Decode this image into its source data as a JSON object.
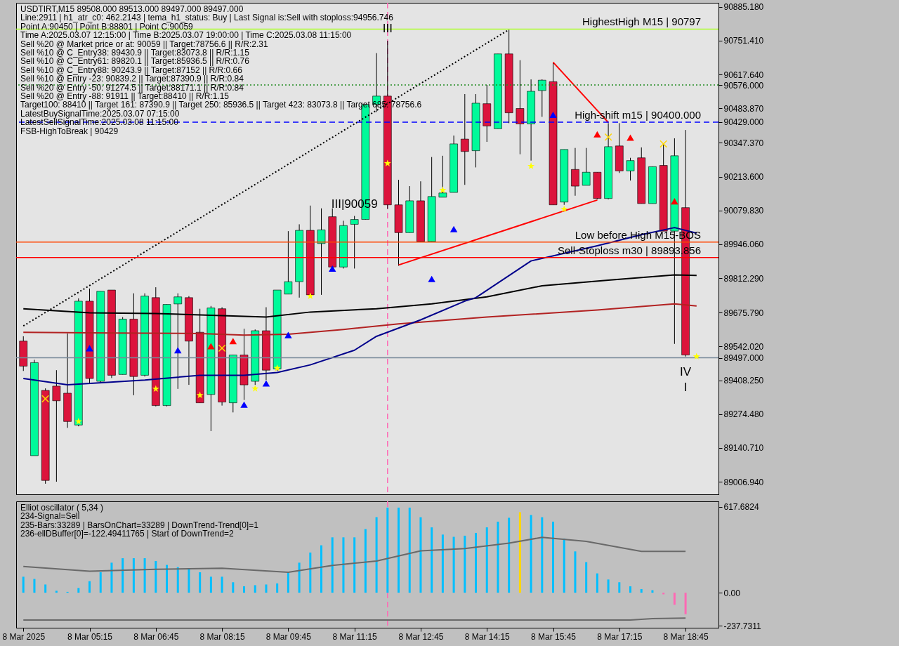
{
  "chart_data": [
    {
      "type": "candlestick",
      "x": [
        "2025-03-08T03:45",
        "2025-03-08T04:00",
        "2025-03-08T04:15",
        "2025-03-08T04:30",
        "2025-03-08T04:45",
        "2025-03-08T05:00",
        "2025-03-08T05:15",
        "2025-03-08T05:30",
        "2025-03-08T05:45",
        "2025-03-08T06:00",
        "2025-03-08T06:15",
        "2025-03-08T06:30",
        "2025-03-08T06:45",
        "2025-03-08T07:00",
        "2025-03-08T07:15",
        "2025-03-08T07:30",
        "2025-03-08T07:45",
        "2025-03-08T08:00",
        "2025-03-08T08:15",
        "2025-03-08T08:30",
        "2025-03-08T08:45",
        "2025-03-08T09:00",
        "2025-03-08T09:15",
        "2025-03-08T09:30",
        "2025-03-08T09:45",
        "2025-03-08T10:00",
        "2025-03-08T10:15",
        "2025-03-08T10:30",
        "2025-03-08T10:45",
        "2025-03-08T11:00",
        "2025-03-08T11:15",
        "2025-03-08T11:30",
        "2025-03-08T11:45",
        "2025-03-08T12:00",
        "2025-03-08T12:15",
        "2025-03-08T12:30",
        "2025-03-08T12:45",
        "2025-03-08T13:00",
        "2025-03-08T13:15",
        "2025-03-08T13:30",
        "2025-03-08T13:45",
        "2025-03-08T14:00",
        "2025-03-08T14:15",
        "2025-03-08T14:30",
        "2025-03-08T14:45",
        "2025-03-08T15:00",
        "2025-03-08T15:15",
        "2025-03-08T15:30",
        "2025-03-08T15:45",
        "2025-03-08T16:00",
        "2025-03-08T16:15",
        "2025-03-08T16:30",
        "2025-03-08T16:45",
        "2025-03-08T17:00",
        "2025-03-08T17:15",
        "2025-03-08T17:30",
        "2025-03-08T17:45",
        "2025-03-08T18:00",
        "2025-03-08T18:15",
        "2025-03-08T18:30",
        "2025-03-08T18:45"
      ],
      "ohlc": [
        [
          89563,
          89582,
          89445,
          89464
        ],
        [
          89110,
          89489,
          89110,
          89478
        ],
        [
          89368,
          89376,
          88999,
          89012
        ],
        [
          89385,
          89448,
          89007,
          89327
        ],
        [
          89357,
          89593,
          89220,
          89245
        ],
        [
          89231,
          89732,
          89226,
          89721
        ],
        [
          89721,
          89771,
          89398,
          89415
        ],
        [
          89404,
          89760,
          89396,
          89760
        ],
        [
          89765,
          89765,
          89417,
          89428
        ],
        [
          89431,
          89658,
          89431,
          89650
        ],
        [
          89650,
          89752,
          89349,
          89423
        ],
        [
          89428,
          89752,
          89423,
          89741
        ],
        [
          89735,
          89776,
          89305,
          89308
        ],
        [
          89308,
          89708,
          89305,
          89708
        ],
        [
          89710,
          89752,
          89374,
          89738
        ],
        [
          89735,
          89741,
          89390,
          89563
        ],
        [
          89598,
          89691,
          89319,
          89319
        ],
        [
          89352,
          89702,
          89207,
          89694
        ],
        [
          89691,
          89697,
          89308,
          89322
        ],
        [
          89319,
          89508,
          89281,
          89508
        ],
        [
          89508,
          89612,
          89330,
          89390
        ],
        [
          89404,
          89609,
          89390,
          89604
        ],
        [
          89604,
          89697,
          89409,
          89448
        ],
        [
          89453,
          89765,
          89445,
          89765
        ],
        [
          89749,
          89998,
          89749,
          89798
        ],
        [
          89798,
          90025,
          89735,
          90001
        ],
        [
          90001,
          90099,
          89746,
          89746
        ],
        [
          89949,
          90088,
          89746,
          90003
        ],
        [
          90055,
          90088,
          89856,
          89856
        ],
        [
          89856,
          90039,
          89850,
          90020
        ],
        [
          90025,
          90058,
          89850,
          90044
        ],
        [
          90044,
          90499,
          90044,
          90499
        ],
        [
          90499,
          90702,
          90469,
          90532
        ],
        [
          90532,
          90751,
          90086,
          90102
        ],
        [
          90102,
          90201,
          89861,
          89992
        ],
        [
          89992,
          90176,
          89992,
          90118
        ],
        [
          90118,
          90195,
          89957,
          89957
        ],
        [
          89957,
          90291,
          89957,
          90135
        ],
        [
          90132,
          90296,
          90132,
          90149
        ],
        [
          90151,
          90376,
          90151,
          90343
        ],
        [
          90362,
          90540,
          90181,
          90313
        ],
        [
          90316,
          90540,
          90250,
          90504
        ],
        [
          90502,
          90576,
          90351,
          90414
        ],
        [
          90403,
          90699,
          90403,
          90699
        ],
        [
          90699,
          90795,
          90425,
          90466
        ],
        [
          90483,
          90674,
          90302,
          90422
        ],
        [
          90422,
          90598,
          90277,
          90551
        ],
        [
          90554,
          90598,
          90450,
          90595
        ],
        [
          90589,
          90663,
          90102,
          90102
        ],
        [
          90113,
          90321,
          90102,
          90321
        ],
        [
          90242,
          90327,
          90138,
          90176
        ],
        [
          90179,
          90327,
          90179,
          90231
        ],
        [
          90231,
          90231,
          90124,
          90127
        ],
        [
          90127,
          90425,
          90124,
          90332
        ],
        [
          90335,
          90425,
          90228,
          90236
        ],
        [
          90236,
          90288,
          90198,
          90277
        ],
        [
          90288,
          90329,
          90107,
          90107
        ],
        [
          90107,
          90253,
          90107,
          90253
        ],
        [
          90258,
          90340,
          89998,
          89998
        ],
        [
          89998,
          90365,
          89552,
          90296
        ],
        [
          90091,
          90398,
          89502,
          89508
        ]
      ],
      "colors": [
        "#dc143c",
        "#00fa9a",
        "#dc143c",
        "#dc143c",
        "#dc143c",
        "#00fa9a",
        "#dc143c",
        "#00fa9a",
        "#dc143c",
        "#00fa9a",
        "#dc143c",
        "#00fa9a",
        "#dc143c",
        "#00fa9a",
        "#00fa9a",
        "#dc143c",
        "#dc143c",
        "#00fa9a",
        "#dc143c",
        "#00fa9a",
        "#dc143c",
        "#00fa9a",
        "#dc143c",
        "#00fa9a",
        "#00fa9a",
        "#00fa9a",
        "#dc143c",
        "#00fa9a",
        "#dc143c",
        "#00fa9a",
        "#00fa9a",
        "#00fa9a",
        "#00fa9a",
        "#dc143c",
        "#dc143c",
        "#00fa9a",
        "#dc143c",
        "#00fa9a",
        "#00fa9a",
        "#00fa9a",
        "#dc143c",
        "#00fa9a",
        "#dc143c",
        "#00fa9a",
        "#dc143c",
        "#dc143c",
        "#00fa9a",
        "#00fa9a",
        "#dc143c",
        "#00fa9a",
        "#dc143c",
        "#00fa9a",
        "#dc143c",
        "#00fa9a",
        "#dc143c",
        "#00fa9a",
        "#dc143c",
        "#00fa9a",
        "#dc143c",
        "#00fa9a",
        "#dc143c"
      ],
      "series": [
        {
          "type": "line",
          "color": "#000000",
          "x": [
            "2025-03-08T03:45",
            "2025-03-08T05:15",
            "2025-03-08T06:45",
            "2025-03-08T08:15",
            "2025-03-08T09:15",
            "2025-03-08T10:15",
            "2025-03-08T11:45",
            "2025-03-08T13:00",
            "2025-03-08T14:15",
            "2025-03-08T15:30",
            "2025-03-08T17:00",
            "2025-03-08T18:30",
            "2025-03-08T19:00"
          ],
          "values": [
            89691,
            89675,
            89672,
            89664,
            89658,
            89678,
            89691,
            89710,
            89738,
            89782,
            89804,
            89825,
            89823
          ]
        },
        {
          "type": "line",
          "color": "#b22222",
          "x": [
            "2025-03-08T03:45",
            "2025-03-08T05:45",
            "2025-03-08T07:45",
            "2025-03-08T08:45",
            "2025-03-08T09:45",
            "2025-03-08T11:00",
            "2025-03-08T12:15",
            "2025-03-08T14:15",
            "2025-03-08T16:45",
            "2025-03-08T18:30",
            "2025-03-08T19:00"
          ],
          "values": [
            89598,
            89595,
            89593,
            89587,
            89590,
            89609,
            89631,
            89658,
            89686,
            89710,
            89702
          ]
        },
        {
          "type": "line",
          "color": "#00008b",
          "x": [
            "2025-03-08T03:45",
            "2025-03-08T04:45",
            "2025-03-08T06:30",
            "2025-03-08T07:45",
            "2025-03-08T08:45",
            "2025-03-08T09:30",
            "2025-03-08T10:15",
            "2025-03-08T11:15",
            "2025-03-08T11:45",
            "2025-03-08T12:45",
            "2025-03-08T13:45",
            "2025-03-08T14:00",
            "2025-03-08T15:15",
            "2025-03-08T16:45",
            "2025-03-08T17:45",
            "2025-03-08T18:30",
            "2025-03-08T19:00"
          ],
          "values": [
            89415,
            89390,
            89409,
            89428,
            89428,
            89439,
            89469,
            89527,
            89582,
            89647,
            89721,
            89735,
            89880,
            89940,
            89984,
            90012,
            89990
          ]
        },
        {
          "type": "line",
          "color": "#000000",
          "line_style": "dotted",
          "x": [
            "2025-03-08T03:45",
            "2025-03-08T14:45"
          ],
          "values": [
            89623,
            90795
          ]
        },
        {
          "type": "line",
          "color": "#ff0000",
          "x": [
            "2025-03-08T12:15",
            "2025-03-08T16:45"
          ],
          "values": [
            89864,
            90121
          ]
        },
        {
          "type": "line",
          "color": "#ff0000",
          "x": [
            "2025-03-08T15:45",
            "2025-03-08T17:00"
          ],
          "values": [
            90666,
            90428
          ]
        },
        {
          "type": "scatter",
          "marker": "star",
          "color": "#ffff00",
          "x": [
            "2025-03-08T05:00",
            "2025-03-08T06:45",
            "2025-03-08T07:45",
            "2025-03-08T09:00",
            "2025-03-08T09:30",
            "2025-03-08T10:15",
            "2025-03-08T12:00",
            "2025-03-08T13:15",
            "2025-03-08T15:15",
            "2025-03-08T16:00",
            "2025-03-08T19:00"
          ],
          "values": [
            89245,
            89374,
            89349,
            89375,
            89456,
            89741,
            90266,
            90160,
            90255,
            90085,
            89502
          ]
        },
        {
          "type": "scatter",
          "marker": "cross",
          "color": "#ffd700",
          "x": [
            "2025-03-08T04:15",
            "2025-03-08T08:15",
            "2025-03-08T17:00",
            "2025-03-08T18:15"
          ],
          "values": [
            89335,
            89535,
            90370,
            90343
          ]
        },
        {
          "type": "scatter",
          "marker": "triangle",
          "color": "#0000ff",
          "x": [
            "2025-03-08T05:15",
            "2025-03-08T07:15",
            "2025-03-08T08:45",
            "2025-03-08T09:15",
            "2025-03-08T09:45",
            "2025-03-08T10:45",
            "2025-03-08T13:00",
            "2025-03-08T13:30",
            "2025-03-08T15:45"
          ],
          "values": [
            89535,
            89527,
            89312,
            89396,
            89587,
            89850,
            89809,
            90006,
            90458
          ]
        },
        {
          "type": "scatter",
          "marker": "triangle",
          "color": "#ff0000",
          "x": [
            "2025-03-08T08:00",
            "2025-03-08T08:30",
            "2025-03-08T16:45",
            "2025-03-08T17:30",
            "2025-03-08T18:30"
          ],
          "values": [
            89543,
            89563,
            90381,
            90368,
            90116
          ]
        }
      ],
      "xlim": [
        "2025-03-08T03:40",
        "2025-03-08T19:25"
      ],
      "ylim": [
        88957,
        90901
      ],
      "yticks": [
        {
          "value": 90885.18,
          "label": "90885.180"
        },
        {
          "value": 90751.41,
          "label": "90751.410"
        },
        {
          "value": 90617.64,
          "label": "90617.640"
        },
        {
          "value": 90576,
          "label": "90576.000"
        },
        {
          "value": 90483.87,
          "label": "90483.870"
        },
        {
          "value": 90429,
          "label": "90429.000"
        },
        {
          "value": 90347.37,
          "label": "90347.370"
        },
        {
          "value": 90213.6,
          "label": "90213.600"
        },
        {
          "value": 90079.83,
          "label": "90079.830"
        },
        {
          "value": 89946.06,
          "label": "89946.060"
        },
        {
          "value": 89812.29,
          "label": "89812.290"
        },
        {
          "value": 89675.79,
          "label": "89675.790"
        },
        {
          "value": 89542.02,
          "label": "89542.020"
        },
        {
          "value": 89497,
          "label": "89497.000"
        },
        {
          "value": 89408.25,
          "label": "89408.250"
        },
        {
          "value": 89274.48,
          "label": "89274.480"
        },
        {
          "value": 89140.71,
          "label": "89140.710"
        },
        {
          "value": 89006.94,
          "label": "89006.940"
        }
      ],
      "tick_labels": "y",
      "ref_lines": [
        {
          "axis": "y",
          "value": 90797,
          "label": "HighestHigh   M15 | 90797",
          "color": "#adff2f"
        },
        {
          "axis": "y",
          "value": 90576,
          "color": "#228b22",
          "line_style": "dotted"
        },
        {
          "axis": "y",
          "value": 90429,
          "label": "High-shift m15 | 90400.000",
          "color": "#0000ff",
          "line_style": "dashed"
        },
        {
          "axis": "y",
          "value": 89955,
          "label": "Low before High   M15-BOS",
          "color": "#ff4500"
        },
        {
          "axis": "y",
          "value": 89893.856,
          "label": "Sell-Stoploss m30 | 89893.856",
          "color": "#ff0000"
        },
        {
          "axis": "y",
          "value": 89497,
          "color": "#778899"
        },
        {
          "axis": "x",
          "value": "2025-03-08T12:00",
          "color": "#ff69b4",
          "line_style": "dashed"
        }
      ],
      "annotations": [
        "USDTIRT,M15  89508.000 89513.000 89497.000 89497.000",
        "Line:2911 | h1_atr_c0: 462.2143 | tema_h1_status: Buy | Last Signal is:Sell with stoploss:94956.746",
        "Point A:90450 | Point B:88801 | Point C:90059",
        "Time A:2025.03.07 12:15:00 | Time B:2025.03.07 19:00:00 | Time C:2025.03.08 11:15:00",
        "Sell %20 @ Market price or at: 90059 || Target:78756.6 || R/R:2.31",
        "Sell %10 @ C_Entry38: 89430.9 || Target:83073.8 || R/R:1.15",
        "Sell %10 @ C_Entry61: 89820.1 || Target:85936.5 || R/R:0.76",
        "Sell %10 @ C_Entry88: 90243.9 || Target:87152 || R/R:0.66",
        "Sell %10 @ Entry -23: 90839.2 || Target:87390.9 || R/R:0.84",
        "Sell %20 @ Entry -50: 91274.5 || Target:88171.1 || R/R:0.84",
        "Sell %20 @ Entry -88: 91911 || Target:88410 || R/R:1.15",
        "Target100: 88410 || Target 161: 87390.9 || Target 250: 85936.5 || Target 423: 83073.8 || Target 685: 78756.6",
        "LatestBuySignalTime:2025.03.07 07:15:00",
        "LatestSellSignalTime:2025.03.08 11:15:00",
        "FSB-HighToBreak | 90429",
        {
          "text": "III",
          "x": "2025-03-08T12:00",
          "y": 90751
        },
        {
          "text": "III|90059",
          "x": "2025-03-08T11:15",
          "y": 90058
        },
        {
          "text": "IV",
          "x": "2025-03-08T18:45",
          "y": 89502
        },
        {
          "text": "I",
          "x": "2025-03-08T18:45",
          "y": 89502
        }
      ]
    },
    {
      "type": "bar",
      "x": [
        "2025-03-08T03:45",
        "2025-03-08T04:00",
        "2025-03-08T04:15",
        "2025-03-08T04:30",
        "2025-03-08T04:45",
        "2025-03-08T05:00",
        "2025-03-08T05:15",
        "2025-03-08T05:30",
        "2025-03-08T05:45",
        "2025-03-08T06:00",
        "2025-03-08T06:15",
        "2025-03-08T06:30",
        "2025-03-08T06:45",
        "2025-03-08T07:00",
        "2025-03-08T07:15",
        "2025-03-08T07:30",
        "2025-03-08T07:45",
        "2025-03-08T08:00",
        "2025-03-08T08:15",
        "2025-03-08T08:30",
        "2025-03-08T08:45",
        "2025-03-08T09:00",
        "2025-03-08T09:15",
        "2025-03-08T09:30",
        "2025-03-08T09:45",
        "2025-03-08T10:00",
        "2025-03-08T10:15",
        "2025-03-08T10:30",
        "2025-03-08T10:45",
        "2025-03-08T11:00",
        "2025-03-08T11:15",
        "2025-03-08T11:30",
        "2025-03-08T11:45",
        "2025-03-08T12:00",
        "2025-03-08T12:15",
        "2025-03-08T12:30",
        "2025-03-08T12:45",
        "2025-03-08T13:00",
        "2025-03-08T13:15",
        "2025-03-08T13:30",
        "2025-03-08T13:45",
        "2025-03-08T14:00",
        "2025-03-08T14:15",
        "2025-03-08T14:30",
        "2025-03-08T14:45",
        "2025-03-08T15:00",
        "2025-03-08T15:15",
        "2025-03-08T15:30",
        "2025-03-08T15:45",
        "2025-03-08T16:00",
        "2025-03-08T16:15",
        "2025-03-08T16:30",
        "2025-03-08T16:45",
        "2025-03-08T17:00",
        "2025-03-08T17:15",
        "2025-03-08T17:30",
        "2025-03-08T17:45",
        "2025-03-08T18:00",
        "2025-03-08T18:15",
        "2025-03-08T18:30",
        "2025-03-08T18:45"
      ],
      "series": [
        {
          "type": "bar",
          "values": [
            115,
            99,
            59,
            14,
            6,
            34,
            83,
            147,
            216,
            248,
            248,
            248,
            228,
            200,
            184,
            168,
            147,
            115,
            115,
            75,
            46,
            54,
            59,
            67,
            147,
            216,
            289,
            341,
            398,
            398,
            398,
            458,
            543,
            612,
            612,
            612,
            543,
            470,
            418,
            402,
            410,
            430,
            470,
            511,
            539,
            579,
            559,
            543,
            511,
            390,
            297,
            220,
            139,
            95,
            75,
            46,
            26,
            18,
            -12,
            -87,
            -155
          ],
          "colors": [
            "#00bfff",
            "#00bfff",
            "#00bfff",
            "#00bfff",
            "#00bfff",
            "#00bfff",
            "#00bfff",
            "#00bfff",
            "#00bfff",
            "#00bfff",
            "#00bfff",
            "#00bfff",
            "#00bfff",
            "#00bfff",
            "#00bfff",
            "#00bfff",
            "#00bfff",
            "#00bfff",
            "#00bfff",
            "#00bfff",
            "#00bfff",
            "#00bfff",
            "#00bfff",
            "#00bfff",
            "#00bfff",
            "#00bfff",
            "#00bfff",
            "#00bfff",
            "#00bfff",
            "#00bfff",
            "#00bfff",
            "#00bfff",
            "#00bfff",
            "#00bfff",
            "#00bfff",
            "#00bfff",
            "#00bfff",
            "#00bfff",
            "#00bfff",
            "#00bfff",
            "#00bfff",
            "#00bfff",
            "#00bfff",
            "#00bfff",
            "#00bfff",
            "#ffd700",
            "#00bfff",
            "#00bfff",
            "#00bfff",
            "#00bfff",
            "#00bfff",
            "#00bfff",
            "#00bfff",
            "#00bfff",
            "#00bfff",
            "#00bfff",
            "#00bfff",
            "#00bfff",
            "#ff69b4",
            "#ff69b4",
            "#ff69b4"
          ]
        },
        {
          "type": "line",
          "color": "#696969",
          "x": [
            "2025-03-08T03:45",
            "2025-03-08T05:15",
            "2025-03-08T06:45",
            "2025-03-08T08:15",
            "2025-03-08T09:45",
            "2025-03-08T10:45",
            "2025-03-08T11:45",
            "2025-03-08T12:45",
            "2025-03-08T13:45",
            "2025-03-08T14:45",
            "2025-03-08T15:30",
            "2025-03-08T16:30",
            "2025-03-08T17:45",
            "2025-03-08T18:45"
          ],
          "values": [
            188,
            155,
            168,
            176,
            147,
            196,
            228,
            301,
            317,
            357,
            398,
            369,
            297,
            297
          ]
        },
        {
          "type": "line",
          "color": "#696969",
          "x": [
            "2025-03-08T03:45",
            "2025-03-08T17:30",
            "2025-03-08T18:00",
            "2025-03-08T18:45"
          ],
          "values": [
            -196,
            -196,
            -186,
            -182
          ]
        }
      ],
      "xlim": [
        "2025-03-08T03:40",
        "2025-03-08T19:25"
      ],
      "xticks": [
        {
          "value": "2025-03-08T03:45",
          "label": "8 Mar 2025"
        },
        {
          "value": "2025-03-08T05:15",
          "label": "8 Mar 05:15"
        },
        {
          "value": "2025-03-08T06:45",
          "label": "8 Mar 06:45"
        },
        {
          "value": "2025-03-08T08:15",
          "label": "8 Mar 08:15"
        },
        {
          "value": "2025-03-08T09:45",
          "label": "8 Mar 09:45"
        },
        {
          "value": "2025-03-08T11:15",
          "label": "8 Mar 11:15"
        },
        {
          "value": "2025-03-08T12:45",
          "label": "8 Mar 12:45"
        },
        {
          "value": "2025-03-08T14:15",
          "label": "8 Mar 14:15"
        },
        {
          "value": "2025-03-08T15:45",
          "label": "8 Mar 15:45"
        },
        {
          "value": "2025-03-08T17:15",
          "label": "8 Mar 17:15"
        },
        {
          "value": "2025-03-08T18:45",
          "label": "8 Mar 18:45"
        }
      ],
      "ylim": [
        -252,
        657
      ],
      "yticks": [
        617.6824,
        {
          "value": 0,
          "label": "0.00"
        },
        -237.7311
      ],
      "ref_lines": [
        {
          "axis": "x",
          "value": "2025-03-08T12:00",
          "color": "#ff69b4",
          "line_style": "dashed"
        }
      ],
      "annotations": [
        "Elliot oscillator ( 5,34 )",
        "234-Signal=Sell",
        "235-Bars:33289 | BarsOnChart=33289 | DownTrend-Trend[0]=1",
        "236-ellDBuffer[0]=-122.49411765 | Start of DownTrend=2"
      ]
    }
  ]
}
